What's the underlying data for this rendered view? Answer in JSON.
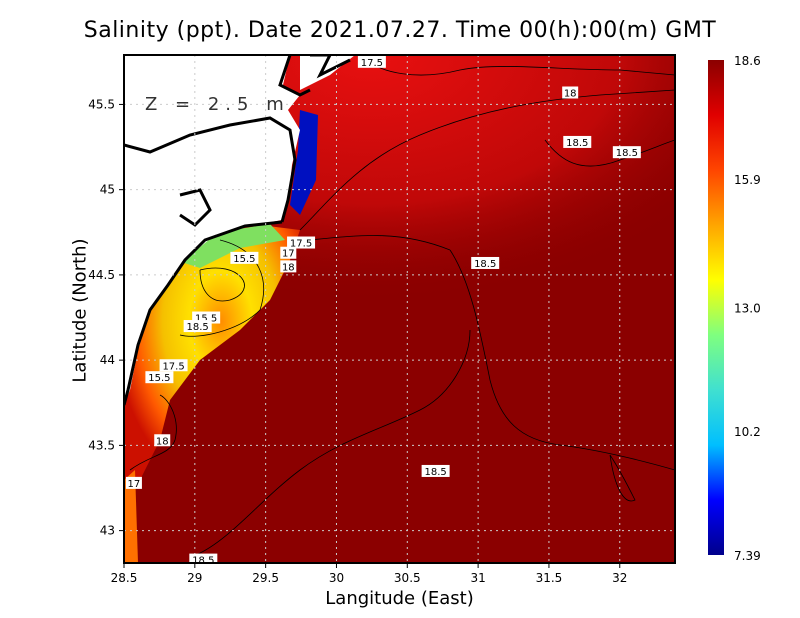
{
  "title": "Salinity (ppt). Date 2021.07.27. Time 00(h):00(m) GMT",
  "depth_label": "Z = 2.5 m",
  "xlabel": "Langitude (East)",
  "ylabel": "Latitude (North)",
  "x_ticks": [
    "28.5",
    "29",
    "29.5",
    "30",
    "30.5",
    "31",
    "31.5",
    "32"
  ],
  "y_ticks": [
    "43",
    "43.5",
    "44",
    "44.5",
    "45",
    "45.5"
  ],
  "colorbar": {
    "ticks": [
      "18.6",
      "15.9",
      "13.0",
      "10.2",
      "7.39"
    ],
    "min": 7.39,
    "max": 18.6,
    "colors": [
      "#00008b",
      "#0000ff",
      "#00bfff",
      "#40e0d0",
      "#7fff7f",
      "#ffff00",
      "#ffa500",
      "#ff4500",
      "#e00000",
      "#8b0000"
    ]
  },
  "map": {
    "lon_range": [
      28.5,
      32.39
    ],
    "lat_range": [
      42.81,
      45.79
    ],
    "grid": "dotted"
  },
  "contour_labels": [
    {
      "text": "17.5",
      "lon": 30.25,
      "lat": 45.75
    },
    {
      "text": "18",
      "lon": 31.65,
      "lat": 45.57
    },
    {
      "text": "18.5",
      "lon": 31.7,
      "lat": 45.28
    },
    {
      "text": "18.5",
      "lon": 32.05,
      "lat": 45.22
    },
    {
      "text": "18.5",
      "lon": 31.05,
      "lat": 44.57
    },
    {
      "text": "15.5",
      "lon": 29.35,
      "lat": 44.6
    },
    {
      "text": "17.5",
      "lon": 29.75,
      "lat": 44.69
    },
    {
      "text": "17",
      "lon": 29.66,
      "lat": 44.63
    },
    {
      "text": "18",
      "lon": 29.66,
      "lat": 44.55
    },
    {
      "text": "15.5",
      "lon": 29.08,
      "lat": 44.25
    },
    {
      "text": "18.5",
      "lon": 29.02,
      "lat": 44.2
    },
    {
      "text": "17.5",
      "lon": 28.85,
      "lat": 43.97
    },
    {
      "text": "15.5",
      "lon": 28.75,
      "lat": 43.9
    },
    {
      "text": "18",
      "lon": 28.77,
      "lat": 43.53
    },
    {
      "text": "17",
      "lon": 28.57,
      "lat": 43.28
    },
    {
      "text": "18.5",
      "lon": 30.7,
      "lat": 43.35
    },
    {
      "text": "18.5",
      "lon": 29.06,
      "lat": 42.83
    }
  ]
}
